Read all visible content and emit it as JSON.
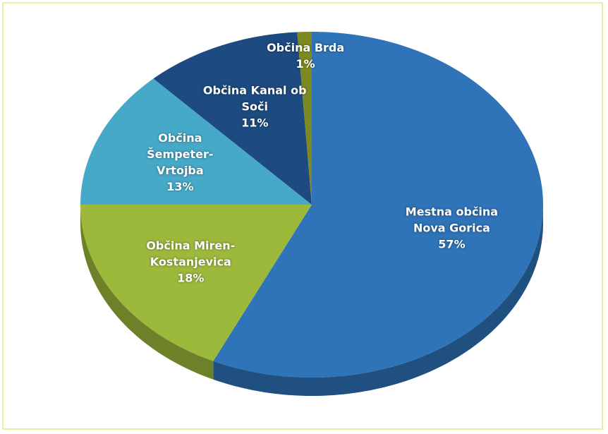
{
  "chart_data": {
    "type": "pie",
    "categories": [
      "Mestna občina Nova Gorica",
      "Občina Miren-Kostanjevica",
      "Občina Šempeter-Vrtojba",
      "Občina Kanal ob Soči",
      "Občina Brda"
    ],
    "values": [
      57,
      18,
      13,
      11,
      1
    ],
    "value_labels": [
      "57%",
      "18%",
      "13%",
      "11%",
      "1%"
    ],
    "colors": [
      "#2f73b8",
      "#9cb93c",
      "#47a9c8",
      "#1d4a80",
      "#7d8a22"
    ]
  }
}
